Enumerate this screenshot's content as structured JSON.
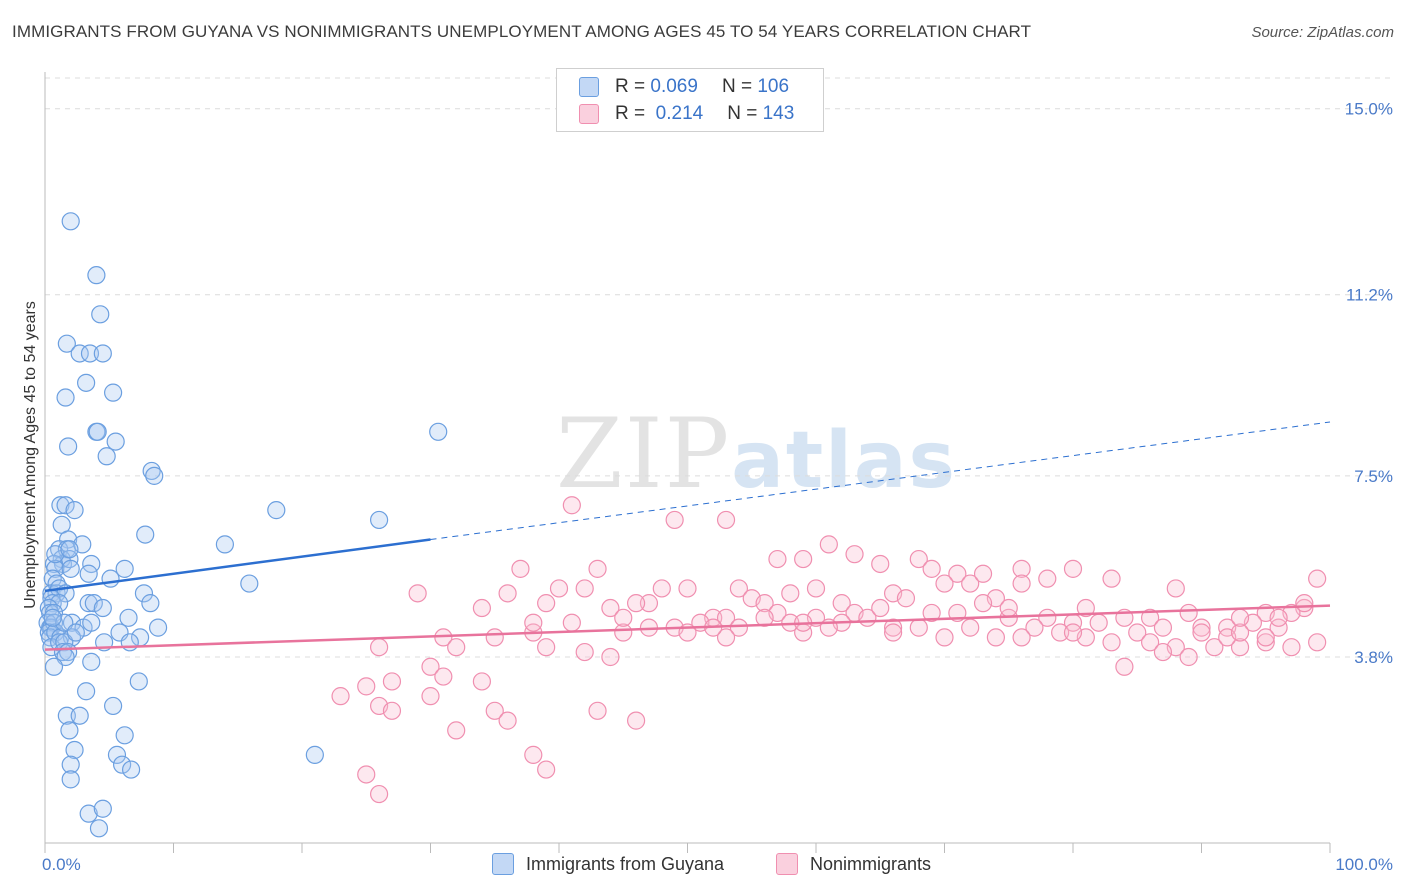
{
  "title": "IMMIGRANTS FROM GUYANA VS NONIMMIGRANTS UNEMPLOYMENT AMONG AGES 45 TO 54 YEARS CORRELATION CHART",
  "source": "Source: ZipAtlas.com",
  "watermark": {
    "zip": "ZIP",
    "atlas": "atlas"
  },
  "legend": {
    "rows": [
      {
        "r_label": "R =",
        "r_value": "0.069",
        "n_label": "N =",
        "n_value": "106"
      },
      {
        "r_label": "R =",
        "r_value": "0.214",
        "n_label": "N =",
        "n_value": "143"
      }
    ]
  },
  "chart_data": {
    "type": "scatter",
    "title": "IMMIGRANTS FROM GUYANA VS NONIMMIGRANTS UNEMPLOYMENT AMONG AGES 45 TO 54 YEARS CORRELATION CHART",
    "xlabel": "",
    "ylabel": "Unemployment Among Ages 45 to 54 years",
    "xlim": [
      0,
      100
    ],
    "ylim": [
      0.0,
      15.75
    ],
    "x_tick_labels": [
      "0.0%",
      "100.0%"
    ],
    "y_ticks": [
      3.8,
      7.5,
      11.2,
      15.0
    ],
    "y_tick_labels": [
      "3.8%",
      "7.5%",
      "11.2%",
      "15.0%"
    ],
    "grid": "horizontal dashed",
    "colors": {
      "guyana": "#6b9fe0",
      "guyana_line": "#2c6fd0",
      "nonimmigrants": "#f08fb0",
      "nonimmigrants_line": "#e8739c"
    },
    "series": [
      {
        "name": "Immigrants from Guyana",
        "r": 0.069,
        "n": 106,
        "trend": {
          "x0": 0,
          "y0": 5.15,
          "x1": 30,
          "y1": 6.2,
          "dash_x1": 100,
          "dash_y1": 8.6
        },
        "points": [
          [
            2,
            12.7
          ],
          [
            4,
            11.6
          ],
          [
            4.3,
            10.8
          ],
          [
            1.7,
            10.2
          ],
          [
            2.7,
            10.0
          ],
          [
            3.5,
            10.0
          ],
          [
            4.5,
            10.0
          ],
          [
            3.2,
            9.4
          ],
          [
            5.3,
            9.2
          ],
          [
            1.6,
            9.1
          ],
          [
            4,
            8.4
          ],
          [
            4.1,
            8.4
          ],
          [
            5.5,
            8.2
          ],
          [
            1.8,
            8.1
          ],
          [
            4.8,
            7.9
          ],
          [
            8.3,
            7.6
          ],
          [
            8.5,
            7.5
          ],
          [
            30.6,
            8.4
          ],
          [
            26,
            6.6
          ],
          [
            18,
            6.8
          ],
          [
            1.2,
            6.9
          ],
          [
            1.6,
            6.9
          ],
          [
            2.3,
            6.8
          ],
          [
            7.8,
            6.3
          ],
          [
            14,
            6.1
          ],
          [
            1.3,
            6.5
          ],
          [
            1.8,
            6.2
          ],
          [
            1.1,
            6.0
          ],
          [
            1.7,
            6.0
          ],
          [
            2.9,
            6.1
          ],
          [
            1.3,
            5.8
          ],
          [
            1.4,
            5.7
          ],
          [
            1.9,
            5.8
          ],
          [
            0.7,
            5.7
          ],
          [
            0.8,
            5.6
          ],
          [
            2.0,
            5.6
          ],
          [
            3.6,
            5.7
          ],
          [
            6.2,
            5.6
          ],
          [
            0.6,
            5.4
          ],
          [
            0.9,
            5.3
          ],
          [
            3.4,
            5.5
          ],
          [
            5.1,
            5.4
          ],
          [
            15.9,
            5.3
          ],
          [
            0.5,
            5.1
          ],
          [
            0.9,
            5.1
          ],
          [
            1.1,
            5.2
          ],
          [
            1.6,
            5.1
          ],
          [
            7.7,
            5.1
          ],
          [
            0.5,
            5.0
          ],
          [
            0.6,
            4.9
          ],
          [
            1.1,
            4.9
          ],
          [
            3.4,
            4.9
          ],
          [
            3.8,
            4.9
          ],
          [
            8.2,
            4.9
          ],
          [
            0.3,
            4.8
          ],
          [
            0.4,
            4.7
          ],
          [
            0.7,
            4.7
          ],
          [
            4.5,
            4.8
          ],
          [
            6.5,
            4.6
          ],
          [
            0.2,
            4.5
          ],
          [
            0.4,
            4.4
          ],
          [
            0.5,
            4.4
          ],
          [
            0.7,
            4.5
          ],
          [
            2.1,
            4.5
          ],
          [
            3,
            4.4
          ],
          [
            3.6,
            4.5
          ],
          [
            8.8,
            4.4
          ],
          [
            0.3,
            4.3
          ],
          [
            0.4,
            4.2
          ],
          [
            0.8,
            4.3
          ],
          [
            1.2,
            4.2
          ],
          [
            2.1,
            4.2
          ],
          [
            5.8,
            4.3
          ],
          [
            7.4,
            4.2
          ],
          [
            0.5,
            4.0
          ],
          [
            1.1,
            4.1
          ],
          [
            1.5,
            4.1
          ],
          [
            4.6,
            4.1
          ],
          [
            6.6,
            4.1
          ],
          [
            1.4,
            3.9
          ],
          [
            1.8,
            3.9
          ],
          [
            1.6,
            3.8
          ],
          [
            3.6,
            3.7
          ],
          [
            0.7,
            3.6
          ],
          [
            7.3,
            3.3
          ],
          [
            3.2,
            3.1
          ],
          [
            5.3,
            2.8
          ],
          [
            1.7,
            2.6
          ],
          [
            2.7,
            2.6
          ],
          [
            1.9,
            2.3
          ],
          [
            6.2,
            2.2
          ],
          [
            2.3,
            1.9
          ],
          [
            5.6,
            1.8
          ],
          [
            21,
            1.8
          ],
          [
            2,
            1.6
          ],
          [
            6,
            1.6
          ],
          [
            6.7,
            1.5
          ],
          [
            2,
            1.3
          ],
          [
            3.4,
            0.6
          ],
          [
            4.5,
            0.7
          ],
          [
            4.2,
            0.3
          ],
          [
            1.5,
            4.5
          ],
          [
            2.4,
            4.3
          ],
          [
            0.8,
            5.9
          ],
          [
            1.9,
            6.0
          ],
          [
            0.6,
            4.6
          ]
        ]
      },
      {
        "name": "Nonimmigrants",
        "r": 0.214,
        "n": 143,
        "trend": {
          "x0": 0,
          "y0": 3.95,
          "x1": 100,
          "y1": 4.85
        },
        "points": [
          [
            41,
            6.9
          ],
          [
            49,
            6.6
          ],
          [
            53,
            6.6
          ],
          [
            61,
            6.1
          ],
          [
            57,
            5.8
          ],
          [
            59,
            5.8
          ],
          [
            63,
            5.9
          ],
          [
            65,
            5.7
          ],
          [
            68,
            5.8
          ],
          [
            69,
            5.6
          ],
          [
            71,
            5.5
          ],
          [
            76,
            5.6
          ],
          [
            78,
            5.4
          ],
          [
            80,
            5.6
          ],
          [
            37,
            5.6
          ],
          [
            43,
            5.6
          ],
          [
            50,
            5.2
          ],
          [
            54,
            5.2
          ],
          [
            55,
            5.0
          ],
          [
            48,
            5.2
          ],
          [
            58,
            5.1
          ],
          [
            60,
            5.2
          ],
          [
            66,
            5.1
          ],
          [
            70,
            5.3
          ],
          [
            72,
            5.3
          ],
          [
            73,
            5.5
          ],
          [
            83,
            5.4
          ],
          [
            99,
            5.4
          ],
          [
            29,
            5.1
          ],
          [
            36,
            5.1
          ],
          [
            40,
            5.2
          ],
          [
            42,
            5.2
          ],
          [
            47,
            4.9
          ],
          [
            56,
            4.9
          ],
          [
            62,
            4.9
          ],
          [
            67,
            5.0
          ],
          [
            74,
            5.0
          ],
          [
            76,
            5.3
          ],
          [
            81,
            4.8
          ],
          [
            88,
            5.2
          ],
          [
            98,
            4.8
          ],
          [
            34,
            4.8
          ],
          [
            39,
            4.9
          ],
          [
            44,
            4.8
          ],
          [
            46,
            4.9
          ],
          [
            52,
            4.6
          ],
          [
            57,
            4.7
          ],
          [
            60,
            4.6
          ],
          [
            63,
            4.7
          ],
          [
            64,
            4.6
          ],
          [
            69,
            4.7
          ],
          [
            71,
            4.7
          ],
          [
            75,
            4.6
          ],
          [
            78,
            4.6
          ],
          [
            80,
            4.5
          ],
          [
            82,
            4.5
          ],
          [
            84,
            4.6
          ],
          [
            86,
            4.6
          ],
          [
            89,
            4.7
          ],
          [
            95,
            4.7
          ],
          [
            97,
            4.7
          ],
          [
            31,
            4.2
          ],
          [
            35,
            4.2
          ],
          [
            38,
            4.3
          ],
          [
            45,
            4.3
          ],
          [
            51,
            4.5
          ],
          [
            53,
            4.6
          ],
          [
            54,
            4.4
          ],
          [
            58,
            4.5
          ],
          [
            62,
            4.5
          ],
          [
            66,
            4.4
          ],
          [
            68,
            4.4
          ],
          [
            72,
            4.4
          ],
          [
            77,
            4.4
          ],
          [
            79,
            4.3
          ],
          [
            85,
            4.3
          ],
          [
            87,
            4.4
          ],
          [
            90,
            4.4
          ],
          [
            92,
            4.4
          ],
          [
            94,
            4.5
          ],
          [
            96,
            4.4
          ],
          [
            26,
            4.0
          ],
          [
            32,
            4.0
          ],
          [
            39,
            4.0
          ],
          [
            42,
            3.9
          ],
          [
            44,
            3.8
          ],
          [
            49,
            4.4
          ],
          [
            50,
            4.3
          ],
          [
            53,
            4.2
          ],
          [
            59,
            4.3
          ],
          [
            74,
            4.2
          ],
          [
            76,
            4.2
          ],
          [
            81,
            4.2
          ],
          [
            83,
            4.1
          ],
          [
            86,
            4.1
          ],
          [
            88,
            4.0
          ],
          [
            91,
            4.0
          ],
          [
            93,
            4.0
          ],
          [
            95,
            4.1
          ],
          [
            97,
            4.0
          ],
          [
            99,
            4.1
          ],
          [
            90,
            4.3
          ],
          [
            92,
            4.2
          ],
          [
            87,
            3.9
          ],
          [
            89,
            3.8
          ],
          [
            93,
            4.3
          ],
          [
            84,
            3.6
          ],
          [
            30,
            3.6
          ],
          [
            31,
            3.4
          ],
          [
            27,
            3.3
          ],
          [
            34,
            3.3
          ],
          [
            25,
            3.2
          ],
          [
            23,
            3.0
          ],
          [
            30,
            3.0
          ],
          [
            26,
            2.8
          ],
          [
            27,
            2.7
          ],
          [
            35,
            2.7
          ],
          [
            32,
            2.3
          ],
          [
            46,
            2.5
          ],
          [
            43,
            2.7
          ],
          [
            36,
            2.5
          ],
          [
            38,
            1.8
          ],
          [
            39,
            1.5
          ],
          [
            25,
            1.4
          ],
          [
            26,
            1.0
          ],
          [
            93,
            4.6
          ],
          [
            95,
            4.2
          ],
          [
            96,
            4.6
          ],
          [
            98,
            4.9
          ],
          [
            80,
            4.3
          ],
          [
            70,
            4.2
          ],
          [
            66,
            4.3
          ],
          [
            61,
            4.4
          ],
          [
            59,
            4.5
          ],
          [
            56,
            4.6
          ],
          [
            52,
            4.4
          ],
          [
            47,
            4.4
          ],
          [
            45,
            4.6
          ],
          [
            41,
            4.5
          ],
          [
            38,
            4.5
          ],
          [
            65,
            4.8
          ],
          [
            73,
            4.9
          ],
          [
            75,
            4.8
          ]
        ]
      }
    ]
  },
  "bottom_legend": {
    "series_a": "Immigrants from Guyana",
    "series_b": "Nonimmigrants"
  }
}
